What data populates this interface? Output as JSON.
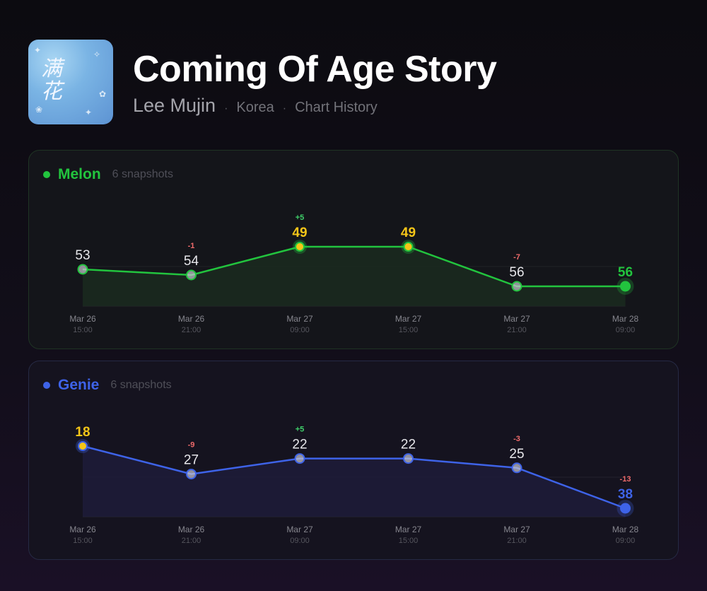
{
  "header": {
    "cover_text": "满花",
    "title": "Coming Of Age Story",
    "artist": "Lee Mujin",
    "region": "Korea",
    "section": "Chart History",
    "separator": "·"
  },
  "chart_data": [
    {
      "type": "line",
      "platform": "Melon",
      "snapshots_label": "6 snapshots",
      "color": "#22c43e",
      "fill": "#1a2a20",
      "peak_color": "#f5c518",
      "x": [
        "Mar 26 15:00",
        "Mar 26 21:00",
        "Mar 27 09:00",
        "Mar 27 15:00",
        "Mar 27 21:00",
        "Mar 28 09:00"
      ],
      "x_dates": [
        "Mar 26",
        "Mar 26",
        "Mar 27",
        "Mar 27",
        "Mar 27",
        "Mar 28"
      ],
      "x_times": [
        "15:00",
        "21:00",
        "09:00",
        "15:00",
        "21:00",
        "09:00"
      ],
      "series": [
        {
          "values": [
            53,
            54,
            49,
            49,
            56,
            56
          ]
        }
      ],
      "changes": [
        "",
        "-1",
        "+5",
        "",
        "-7",
        ""
      ],
      "peak_indices": [
        2,
        3
      ],
      "y_inverted": true,
      "ylim": [
        47,
        58
      ]
    },
    {
      "type": "line",
      "platform": "Genie",
      "snapshots_label": "6 snapshots",
      "color": "#3e63e8",
      "fill": "#1d1c3a",
      "peak_color": "#f5c518",
      "x": [
        "Mar 26 15:00",
        "Mar 26 21:00",
        "Mar 27 09:00",
        "Mar 27 15:00",
        "Mar 27 21:00",
        "Mar 28 09:00"
      ],
      "x_dates": [
        "Mar 26",
        "Mar 26",
        "Mar 27",
        "Mar 27",
        "Mar 27",
        "Mar 28"
      ],
      "x_times": [
        "15:00",
        "21:00",
        "09:00",
        "15:00",
        "21:00",
        "09:00"
      ],
      "series": [
        {
          "values": [
            18,
            27,
            22,
            22,
            25,
            38
          ]
        }
      ],
      "changes": [
        "",
        "-9",
        "+5",
        "",
        "-3",
        "-13"
      ],
      "peak_indices": [
        0
      ],
      "y_inverted": true,
      "ylim": [
        18,
        38
      ]
    }
  ]
}
